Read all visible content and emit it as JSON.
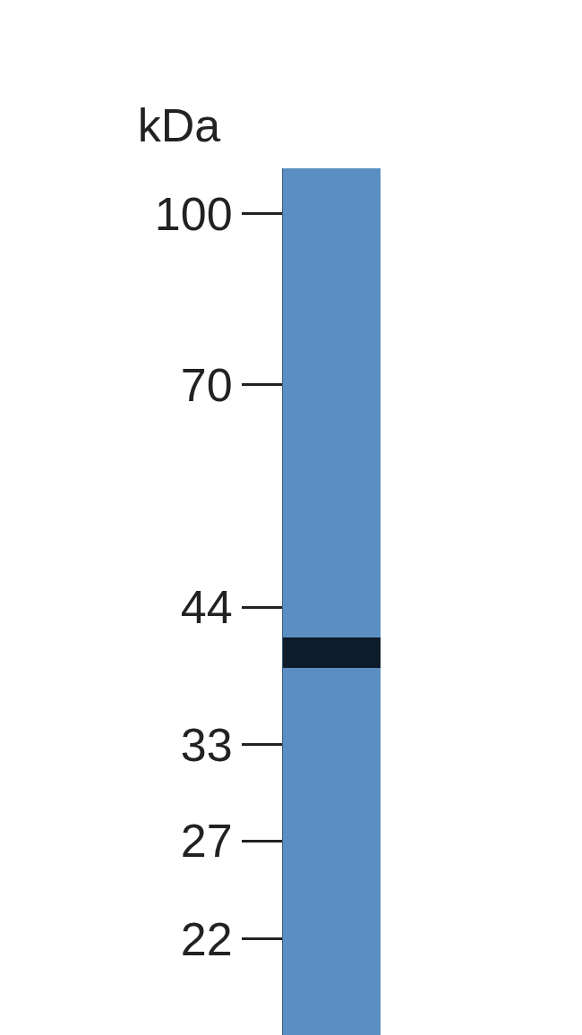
{
  "chart_data": {
    "type": "blot",
    "title": "kDa",
    "values": [
      40
    ],
    "color": "#5b8fc3",
    "log": "y",
    "ylim": [
      18,
      110
    ],
    "yticks": [
      100,
      70,
      44,
      33,
      27,
      22
    ]
  }
}
